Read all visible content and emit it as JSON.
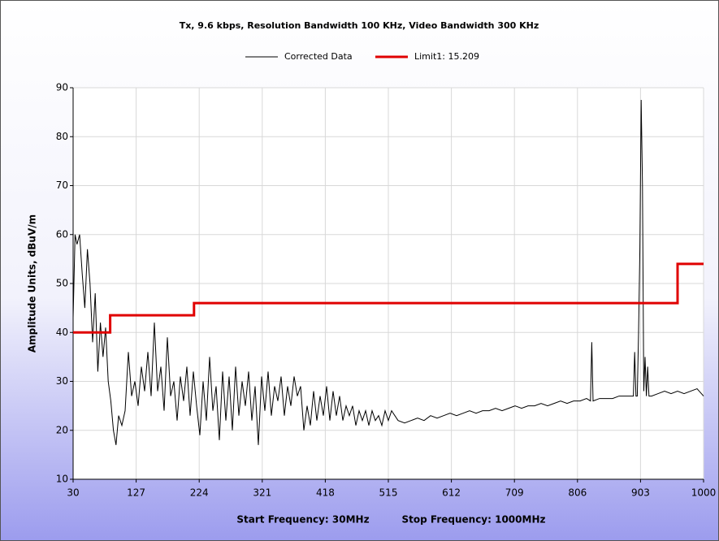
{
  "chart_data": {
    "type": "line",
    "title": "Tx, 9.6 kbps, Resolution Bandwidth 100 KHz, Video Bandwidth 300 KHz",
    "ylabel": "Amplitude Units, dBuV/m",
    "footer": [
      "Start Frequency: 30MHz",
      "Stop Frequency: 1000MHz"
    ],
    "xlim": [
      30,
      1000
    ],
    "xticks": [
      30,
      127,
      224,
      321,
      418,
      515,
      612,
      709,
      806,
      903,
      1000
    ],
    "ylim": [
      10,
      90
    ],
    "yticks": [
      10,
      20,
      30,
      40,
      50,
      60,
      70,
      80,
      90
    ],
    "grid": true,
    "series": [
      {
        "name": "Corrected Data",
        "color": "#000000",
        "x": [
          30,
          33,
          36,
          40,
          44,
          48,
          52,
          56,
          60,
          64,
          68,
          72,
          76,
          80,
          84,
          88,
          92,
          96,
          100,
          105,
          110,
          115,
          120,
          125,
          130,
          135,
          140,
          145,
          150,
          155,
          160,
          165,
          170,
          175,
          180,
          185,
          190,
          195,
          200,
          205,
          210,
          215,
          220,
          225,
          230,
          235,
          240,
          245,
          250,
          255,
          260,
          265,
          270,
          275,
          280,
          285,
          290,
          295,
          300,
          305,
          310,
          315,
          320,
          325,
          330,
          335,
          340,
          345,
          350,
          355,
          360,
          365,
          370,
          375,
          380,
          385,
          390,
          395,
          400,
          405,
          410,
          415,
          420,
          425,
          430,
          435,
          440,
          445,
          450,
          455,
          460,
          465,
          470,
          475,
          480,
          485,
          490,
          495,
          500,
          505,
          510,
          515,
          520,
          530,
          540,
          550,
          560,
          570,
          580,
          590,
          600,
          610,
          620,
          630,
          640,
          650,
          660,
          670,
          680,
          690,
          700,
          710,
          720,
          730,
          740,
          750,
          760,
          770,
          780,
          790,
          800,
          810,
          820,
          826,
          828,
          830,
          840,
          850,
          860,
          870,
          880,
          892,
          894,
          896,
          898,
          900,
          902,
          904,
          906,
          908,
          910,
          912,
          914,
          916,
          918,
          920,
          930,
          940,
          950,
          960,
          970,
          980,
          990,
          1000
        ],
        "values": [
          43,
          60,
          58,
          60,
          52,
          45,
          57,
          50,
          38,
          48,
          32,
          42,
          35,
          41,
          30,
          26,
          20,
          17,
          23,
          21,
          24,
          36,
          27,
          30,
          25,
          33,
          28,
          36,
          27,
          42,
          28,
          33,
          24,
          39,
          27,
          30,
          22,
          31,
          26,
          33,
          23,
          32,
          25,
          19,
          30,
          22,
          35,
          24,
          29,
          18,
          32,
          22,
          31,
          20,
          33,
          23,
          30,
          25,
          32,
          22,
          29,
          17,
          31,
          24,
          32,
          23,
          29,
          26,
          31,
          23,
          29,
          25,
          31,
          27,
          29,
          20,
          25,
          21,
          28,
          22,
          27,
          23,
          29,
          22,
          28,
          23,
          27,
          22,
          25,
          23,
          25,
          21,
          24,
          22,
          24,
          21,
          24,
          22,
          23,
          21,
          24,
          22,
          24,
          22,
          21.5,
          22,
          22.5,
          22,
          23,
          22.5,
          23,
          23.5,
          23,
          23.5,
          24,
          23.5,
          24,
          24,
          24.5,
          24,
          24.5,
          25,
          24.5,
          25,
          25,
          25.5,
          25,
          25.5,
          26,
          25.5,
          26,
          26,
          26.5,
          26,
          38,
          26,
          26.5,
          26.5,
          26.5,
          27,
          27,
          27,
          36,
          27,
          27,
          40,
          57,
          87.5,
          70,
          28,
          35,
          27,
          33,
          27,
          27,
          27,
          27.5,
          28,
          27.5,
          28,
          27.5,
          28,
          28.5,
          27
        ]
      },
      {
        "name": "Limit1: 15.209",
        "color": "#e00000",
        "x": [
          30,
          87,
          87,
          216,
          216,
          960,
          960,
          1000
        ],
        "values": [
          40,
          40,
          43.5,
          43.5,
          46,
          46,
          54,
          54
        ]
      }
    ]
  }
}
